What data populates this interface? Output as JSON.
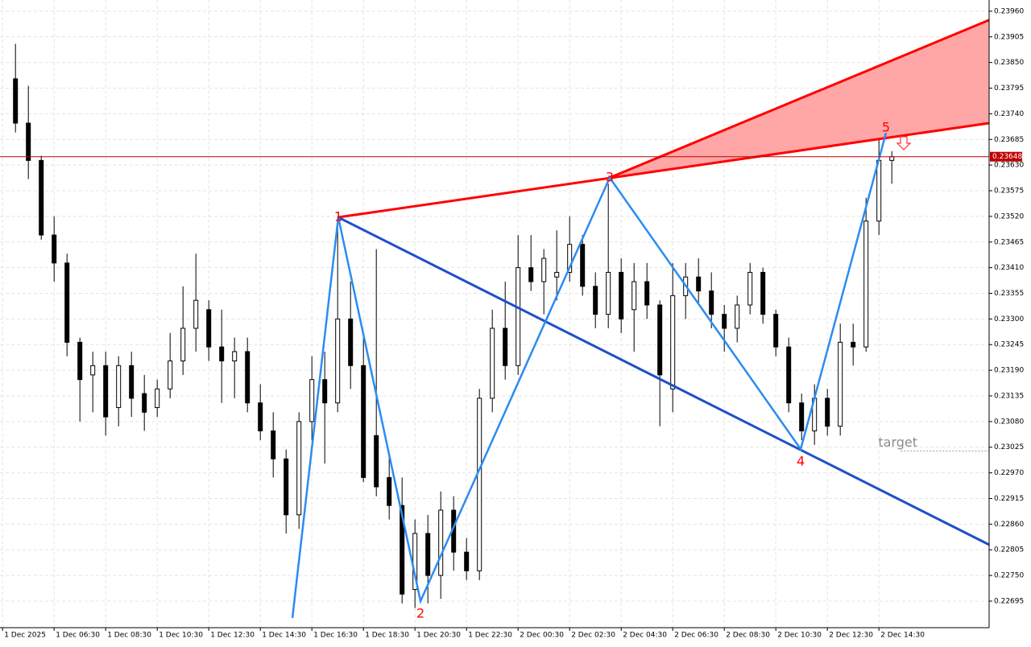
{
  "chart_data": {
    "type": "candlestick",
    "xlim": [
      -1.2,
      75.55
    ],
    "ylim": [
      0.22638,
      0.23984
    ],
    "grid": true,
    "up_color": "#ffffff",
    "down_color": "#000000",
    "xticks": [
      {
        "value": -1,
        "label": "1 Dec 2025"
      },
      {
        "value": 3,
        "label": "1 Dec 06:30"
      },
      {
        "value": 7,
        "label": "1 Dec 08:30"
      },
      {
        "value": 11,
        "label": "1 Dec 10:30"
      },
      {
        "value": 15,
        "label": "1 Dec 12:30"
      },
      {
        "value": 19,
        "label": "1 Dec 14:30"
      },
      {
        "value": 23,
        "label": "1 Dec 16:30"
      },
      {
        "value": 27,
        "label": "1 Dec 18:30"
      },
      {
        "value": 31,
        "label": "1 Dec 20:30"
      },
      {
        "value": 35,
        "label": "1 Dec 22:30"
      },
      {
        "value": 39,
        "label": "2 Dec 00:30"
      },
      {
        "value": 43,
        "label": "2 Dec 02:30"
      },
      {
        "value": 47,
        "label": "2 Dec 04:30"
      },
      {
        "value": 51,
        "label": "2 Dec 06:30"
      },
      {
        "value": 55,
        "label": "2 Dec 08:30"
      },
      {
        "value": 59,
        "label": "2 Dec 10:30"
      },
      {
        "value": 63,
        "label": "2 Dec 12:30"
      },
      {
        "value": 67,
        "label": "2 Dec 14:30"
      }
    ],
    "yticks": [
      {
        "value": 0.2396,
        "label": "0.23960"
      },
      0.23905,
      {
        "value": 0.2385,
        "label": "0.23850"
      },
      0.23795,
      {
        "value": 0.2374,
        "label": "0.23740"
      },
      0.23685,
      {
        "value": 0.2363,
        "label": "0.23630"
      },
      0.23575,
      {
        "value": 0.2352,
        "label": "0.23520"
      },
      0.23465,
      {
        "value": 0.2341,
        "label": "0.23410"
      },
      0.23355,
      {
        "value": 0.233,
        "label": "0.23300"
      },
      0.23245,
      {
        "value": 0.2319,
        "label": "0.23190"
      },
      0.23135,
      {
        "value": 0.2308,
        "label": "0.23080"
      },
      0.23025,
      {
        "value": 0.2297,
        "label": "0.22970"
      },
      0.22915,
      {
        "value": 0.2286,
        "label": "0.22860"
      },
      0.22805,
      {
        "value": 0.2275,
        "label": "0.22750"
      },
      0.22695
    ],
    "candles": {
      "open": [
        0.23815,
        0.2372,
        0.2364,
        0.2348,
        0.2342,
        0.2325,
        0.2318,
        0.232,
        0.2311,
        0.232,
        0.2314,
        0.2311,
        0.2315,
        0.2321,
        0.2328,
        0.2332,
        0.2324,
        0.2321,
        0.2323,
        0.2312,
        0.2306,
        0.23,
        0.2288,
        0.2308,
        0.2317,
        0.2312,
        0.233,
        0.232,
        0.2305,
        0.2296,
        0.229,
        0.2272,
        0.2284,
        0.2275,
        0.2289,
        0.228,
        0.2276,
        0.2313,
        0.2328,
        0.232,
        0.2341,
        0.2338,
        0.2339,
        0.234,
        0.2346,
        0.2337,
        0.2331,
        0.234,
        0.2332,
        0.2338,
        0.2333,
        0.2315,
        0.2335,
        0.2339,
        0.2336,
        0.2331,
        0.2328,
        0.2333,
        0.234,
        0.2331,
        0.2324,
        0.2312,
        0.2306,
        0.2313,
        0.2307,
        0.2325,
        0.2324,
        0.2351,
        0.2364
      ],
      "high": [
        0.2389,
        0.238,
        0.2365,
        0.2352,
        0.2344,
        0.2326,
        0.2323,
        0.2323,
        0.2322,
        0.2323,
        0.2318,
        0.2317,
        0.2327,
        0.2337,
        0.2344,
        0.2334,
        0.2332,
        0.2326,
        0.2326,
        0.2316,
        0.231,
        0.2302,
        0.231,
        0.2322,
        0.2323,
        0.2352,
        0.2338,
        0.2326,
        0.2345,
        0.2301,
        0.2296,
        0.2287,
        0.2288,
        0.2293,
        0.2292,
        0.2283,
        0.2315,
        0.2332,
        0.2338,
        0.2348,
        0.2348,
        0.2345,
        0.2349,
        0.2352,
        0.2348,
        0.234,
        0.2359,
        0.2343,
        0.2342,
        0.2342,
        0.2334,
        0.2342,
        0.2342,
        0.2343,
        0.234,
        0.2333,
        0.2335,
        0.2342,
        0.2341,
        0.2332,
        0.2326,
        0.2314,
        0.2316,
        0.2315,
        0.2329,
        0.2329,
        0.2356,
        0.2369,
        0.2366
      ],
      "low": [
        0.237,
        0.236,
        0.2347,
        0.2338,
        0.2322,
        0.2308,
        0.231,
        0.2305,
        0.2307,
        0.2309,
        0.2306,
        0.2309,
        0.2313,
        0.2318,
        0.2323,
        0.2321,
        0.2312,
        0.2313,
        0.231,
        0.2304,
        0.2296,
        0.2284,
        0.2285,
        0.2304,
        0.2299,
        0.231,
        0.2315,
        0.2295,
        0.2292,
        0.2287,
        0.2269,
        0.2268,
        0.2269,
        0.227,
        0.2276,
        0.2274,
        0.2274,
        0.231,
        0.2317,
        0.2318,
        0.2336,
        0.2331,
        0.2334,
        0.2338,
        0.2335,
        0.2328,
        0.2328,
        0.2327,
        0.2323,
        0.233,
        0.2307,
        0.231,
        0.233,
        0.2333,
        0.2328,
        0.2323,
        0.2325,
        0.2331,
        0.2329,
        0.2322,
        0.231,
        0.2304,
        0.2303,
        0.2305,
        0.2305,
        0.232,
        0.2323,
        0.2348,
        0.2359
      ],
      "close": [
        0.2372,
        0.2364,
        0.2348,
        0.2342,
        0.2325,
        0.2317,
        0.232,
        0.2309,
        0.232,
        0.2313,
        0.231,
        0.2315,
        0.2321,
        0.2328,
        0.2334,
        0.2324,
        0.2321,
        0.2323,
        0.2312,
        0.2306,
        0.23,
        0.2288,
        0.2308,
        0.2317,
        0.2312,
        0.233,
        0.232,
        0.2296,
        0.2294,
        0.229,
        0.2271,
        0.2284,
        0.2275,
        0.2289,
        0.228,
        0.2276,
        0.2313,
        0.2328,
        0.232,
        0.2341,
        0.2338,
        0.2343,
        0.234,
        0.2346,
        0.2337,
        0.2331,
        0.234,
        0.233,
        0.2338,
        0.2333,
        0.2318,
        0.2335,
        0.2339,
        0.2336,
        0.2331,
        0.2328,
        0.2333,
        0.234,
        0.2331,
        0.2324,
        0.2312,
        0.2306,
        0.2313,
        0.2307,
        0.2325,
        0.2324,
        0.2351,
        0.2364,
        0.23648
      ]
    },
    "last_price": {
      "value": 0.23648,
      "label": "0.23648",
      "color": "#c00000"
    },
    "pattern": {
      "zigzag": {
        "x": [
          21.49,
          25.05,
          31.43,
          46.11,
          60.93,
          67.55
        ],
        "y": [
          0.22659,
          0.23518,
          0.22695,
          0.23603,
          0.23021,
          0.23699
        ],
        "color": "#2b8cf0"
      },
      "labels": [
        null,
        "1",
        "2",
        "3",
        "4",
        "5"
      ],
      "label_color": "#ff0000",
      "lines": [
        {
          "x": [
            25.05,
            75.55
          ],
          "y": [
            0.23518,
            0.2372
          ],
          "color": "#ff0000"
        },
        {
          "x": [
            46.11,
            75.55
          ],
          "y": [
            0.23603,
            0.23941
          ],
          "color": "#ff0000"
        },
        {
          "x": [
            25.05,
            75.55
          ],
          "y": [
            0.23518,
            0.22816
          ],
          "color": "#1e4fc8"
        }
      ],
      "channel_fill": "#ff9c9c"
    },
    "target": {
      "label": "target",
      "value": 0.23017,
      "x": 68.7
    }
  }
}
